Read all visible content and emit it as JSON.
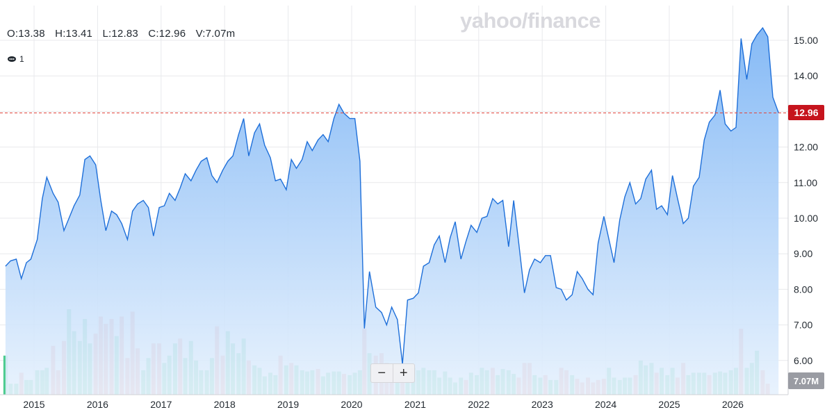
{
  "brand": "yahoo/finance",
  "ohlc": {
    "open": "O:13.38",
    "high": "H:13.41",
    "low": "L:12.83",
    "close": "C:12.96",
    "volume": "V:7.07m"
  },
  "events": {
    "count": "1"
  },
  "zoom": {
    "minus": "−",
    "plus": "+"
  },
  "colors": {
    "line": "#1e6fd9",
    "area": "#9cc7f7",
    "up": "#4ccb8f",
    "down": "#ef8a85",
    "ref": "#e0443a",
    "priceTag": "#c6141d",
    "volTag": "#9a9ca3"
  },
  "chart_data": {
    "type": "area",
    "x_axis": {
      "ticks": [
        "2015",
        "2016",
        "2017",
        "2018",
        "2019",
        "2020",
        "2021",
        "2022",
        "2023",
        "2024",
        "2025",
        "2026"
      ]
    },
    "y_axis": {
      "side": "right",
      "ticks": [
        "6.00",
        "7.00",
        "8.00",
        "9.00",
        "10.00",
        "11.00",
        "12.00",
        "13.00",
        "14.00",
        "15.00"
      ]
    },
    "reference_line": {
      "value": 12.96,
      "label": "12.96"
    },
    "volume_label": "7.07M",
    "x": [
      2014.55,
      2014.63,
      2014.72,
      2014.8,
      2014.88,
      2014.95,
      2015.05,
      2015.13,
      2015.2,
      2015.3,
      2015.38,
      2015.47,
      2015.55,
      2015.63,
      2015.72,
      2015.8,
      2015.88,
      2015.97,
      2016.05,
      2016.13,
      2016.22,
      2016.3,
      2016.38,
      2016.47,
      2016.55,
      2016.63,
      2016.72,
      2016.8,
      2016.88,
      2016.97,
      2017.05,
      2017.13,
      2017.22,
      2017.3,
      2017.38,
      2017.47,
      2017.55,
      2017.63,
      2017.72,
      2017.8,
      2017.88,
      2017.97,
      2018.05,
      2018.13,
      2018.22,
      2018.3,
      2018.38,
      2018.47,
      2018.55,
      2018.63,
      2018.72,
      2018.8,
      2018.88,
      2018.97,
      2019.05,
      2019.13,
      2019.22,
      2019.3,
      2019.38,
      2019.47,
      2019.55,
      2019.63,
      2019.72,
      2019.8,
      2019.88,
      2019.97,
      2020.05,
      2020.13,
      2020.2,
      2020.28,
      2020.38,
      2020.47,
      2020.55,
      2020.63,
      2020.72,
      2020.8,
      2020.88,
      2020.97,
      2021.05,
      2021.13,
      2021.22,
      2021.3,
      2021.38,
      2021.47,
      2021.55,
      2021.63,
      2021.72,
      2021.8,
      2021.88,
      2021.97,
      2022.05,
      2022.13,
      2022.22,
      2022.3,
      2022.38,
      2022.47,
      2022.55,
      2022.63,
      2022.72,
      2022.8,
      2022.88,
      2022.97,
      2023.05,
      2023.13,
      2023.22,
      2023.3,
      2023.38,
      2023.47,
      2023.55,
      2023.63,
      2023.72,
      2023.8,
      2023.88,
      2023.97,
      2024.05,
      2024.13,
      2024.22,
      2024.3,
      2024.38,
      2024.47,
      2024.55,
      2024.63,
      2024.72,
      2024.8,
      2024.88,
      2024.97,
      2025.05,
      2025.13,
      2025.22,
      2025.3,
      2025.38,
      2025.47,
      2025.55,
      2025.63,
      2025.72,
      2025.8,
      2025.88,
      2025.97,
      2026.05,
      2026.13,
      2026.22,
      2026.3,
      2026.38,
      2026.47,
      2026.55,
      2026.63,
      2026.72
    ],
    "price": [
      8.65,
      8.8,
      8.85,
      8.3,
      8.75,
      8.85,
      9.4,
      10.55,
      11.15,
      10.7,
      10.45,
      9.65,
      10.0,
      10.35,
      10.65,
      11.65,
      11.75,
      11.5,
      10.5,
      9.65,
      10.2,
      10.1,
      9.85,
      9.4,
      10.2,
      10.4,
      10.5,
      10.3,
      9.5,
      10.3,
      10.35,
      10.7,
      10.5,
      10.85,
      11.25,
      11.05,
      11.35,
      11.6,
      11.7,
      11.2,
      11.0,
      11.35,
      11.6,
      11.75,
      12.35,
      12.8,
      11.75,
      12.4,
      12.65,
      12.05,
      11.7,
      11.05,
      11.1,
      10.8,
      11.65,
      11.4,
      11.65,
      12.15,
      11.9,
      12.2,
      12.35,
      12.15,
      12.8,
      13.2,
      12.95,
      12.8,
      12.8,
      11.6,
      6.9,
      8.5,
      7.5,
      7.35,
      7.0,
      7.5,
      7.15,
      5.9,
      7.7,
      7.75,
      7.9,
      8.65,
      8.75,
      9.25,
      9.5,
      8.75,
      9.45,
      9.9,
      8.85,
      9.35,
      9.8,
      9.6,
      10.0,
      10.05,
      10.55,
      10.4,
      10.5,
      9.2,
      10.5,
      9.3,
      7.9,
      8.55,
      8.85,
      8.75,
      8.95,
      8.95,
      8.05,
      8.0,
      7.7,
      7.85,
      8.5,
      8.3,
      8.0,
      7.85,
      9.3,
      10.05,
      9.4,
      8.75,
      9.95,
      10.6,
      11.0,
      10.4,
      10.55,
      11.1,
      11.35,
      10.25,
      10.35,
      10.1,
      11.2,
      10.55,
      9.85,
      10.0,
      10.9,
      11.15,
      12.2,
      12.7,
      12.9,
      13.6,
      12.65,
      12.45,
      12.55,
      15.05,
      13.9,
      14.9,
      15.15,
      15.35,
      15.1,
      13.4,
      12.96
    ],
    "volume": [
      {
        "v": 16,
        "up": true
      },
      {
        "v": 4.5,
        "up": true
      },
      {
        "v": 4.5,
        "up": true
      },
      {
        "v": 9,
        "up": false
      },
      {
        "v": 6,
        "up": true
      },
      {
        "v": 6,
        "up": true
      },
      {
        "v": 10,
        "up": true
      },
      {
        "v": 10,
        "up": true
      },
      {
        "v": 11,
        "up": true
      },
      {
        "v": 20,
        "up": false
      },
      {
        "v": 10,
        "up": false
      },
      {
        "v": 22,
        "up": false
      },
      {
        "v": 35,
        "up": true
      },
      {
        "v": 26,
        "up": true
      },
      {
        "v": 22,
        "up": true
      },
      {
        "v": 31,
        "up": true
      },
      {
        "v": 21,
        "up": true
      },
      {
        "v": 25,
        "up": false
      },
      {
        "v": 32,
        "up": false
      },
      {
        "v": 29,
        "up": false
      },
      {
        "v": 31,
        "up": false
      },
      {
        "v": 24,
        "up": true
      },
      {
        "v": 32,
        "up": false
      },
      {
        "v": 15,
        "up": false
      },
      {
        "v": 34,
        "up": false
      },
      {
        "v": 19,
        "up": false
      },
      {
        "v": 10,
        "up": true
      },
      {
        "v": 15,
        "up": true
      },
      {
        "v": 21,
        "up": false
      },
      {
        "v": 21,
        "up": false
      },
      {
        "v": 13,
        "up": true
      },
      {
        "v": 16,
        "up": true
      },
      {
        "v": 21,
        "up": true
      },
      {
        "v": 23,
        "up": false
      },
      {
        "v": 15,
        "up": true
      },
      {
        "v": 22,
        "up": true
      },
      {
        "v": 14,
        "up": true
      },
      {
        "v": 10,
        "up": true
      },
      {
        "v": 10,
        "up": true
      },
      {
        "v": 15,
        "up": true
      },
      {
        "v": 28,
        "up": false
      },
      {
        "v": 16,
        "up": false
      },
      {
        "v": 26,
        "up": true
      },
      {
        "v": 21,
        "up": true
      },
      {
        "v": 17,
        "up": true
      },
      {
        "v": 23,
        "up": true
      },
      {
        "v": 14,
        "up": false
      },
      {
        "v": 12,
        "up": true
      },
      {
        "v": 11,
        "up": true
      },
      {
        "v": 7.5,
        "up": true
      },
      {
        "v": 9,
        "up": true
      },
      {
        "v": 8,
        "up": true
      },
      {
        "v": 16,
        "up": false
      },
      {
        "v": 12,
        "up": true
      },
      {
        "v": 13,
        "up": false
      },
      {
        "v": 12,
        "up": true
      },
      {
        "v": 10,
        "up": true
      },
      {
        "v": 9.5,
        "up": true
      },
      {
        "v": 10,
        "up": true
      },
      {
        "v": 10.5,
        "up": false
      },
      {
        "v": 7.5,
        "up": true
      },
      {
        "v": 9,
        "up": true
      },
      {
        "v": 9.5,
        "up": true
      },
      {
        "v": 9.5,
        "up": true
      },
      {
        "v": 8.5,
        "up": false
      },
      {
        "v": 8,
        "up": true
      },
      {
        "v": 9,
        "up": true
      },
      {
        "v": 10,
        "up": true
      },
      {
        "v": 27,
        "up": false
      },
      {
        "v": 17,
        "up": true
      },
      {
        "v": 16,
        "up": false
      },
      {
        "v": 17,
        "up": false
      },
      {
        "v": 13,
        "up": false
      },
      {
        "v": 11,
        "up": false
      },
      {
        "v": 9,
        "up": true
      },
      {
        "v": 6,
        "up": false
      },
      {
        "v": 5.5,
        "up": true
      },
      {
        "v": 11,
        "up": true
      },
      {
        "v": 10,
        "up": true
      },
      {
        "v": 11,
        "up": true
      },
      {
        "v": 10,
        "up": true
      },
      {
        "v": 10,
        "up": true
      },
      {
        "v": 7,
        "up": true
      },
      {
        "v": 9.5,
        "up": true
      },
      {
        "v": 7,
        "up": true
      },
      {
        "v": 5,
        "up": true
      },
      {
        "v": 7,
        "up": true
      },
      {
        "v": 6,
        "up": false
      },
      {
        "v": 9,
        "up": true
      },
      {
        "v": 8,
        "up": true
      },
      {
        "v": 11,
        "up": true
      },
      {
        "v": 10,
        "up": true
      },
      {
        "v": 11,
        "up": false
      },
      {
        "v": 8,
        "up": true
      },
      {
        "v": 10.5,
        "up": true
      },
      {
        "v": 10,
        "up": true
      },
      {
        "v": 8.5,
        "up": true
      },
      {
        "v": 7,
        "up": false
      },
      {
        "v": 13,
        "up": false
      },
      {
        "v": 13,
        "up": false
      },
      {
        "v": 8,
        "up": true
      },
      {
        "v": 7,
        "up": true
      },
      {
        "v": 8,
        "up": false
      },
      {
        "v": 6,
        "up": true
      },
      {
        "v": 6,
        "up": true
      },
      {
        "v": 11,
        "up": false
      },
      {
        "v": 10,
        "up": false
      },
      {
        "v": 8,
        "up": true
      },
      {
        "v": 6.5,
        "up": false
      },
      {
        "v": 5,
        "up": false
      },
      {
        "v": 7,
        "up": false
      },
      {
        "v": 5,
        "up": false
      },
      {
        "v": 6,
        "up": false
      },
      {
        "v": 6.5,
        "up": false
      },
      {
        "v": 11,
        "up": true
      },
      {
        "v": 7,
        "up": true
      },
      {
        "v": 6,
        "up": true
      },
      {
        "v": 7,
        "up": true
      },
      {
        "v": 7,
        "up": true
      },
      {
        "v": 8,
        "up": false
      },
      {
        "v": 14,
        "up": true
      },
      {
        "v": 12,
        "up": true
      },
      {
        "v": 13,
        "up": true
      },
      {
        "v": 9,
        "up": false
      },
      {
        "v": 11,
        "up": true
      },
      {
        "v": 8,
        "up": true
      },
      {
        "v": 11,
        "up": true
      },
      {
        "v": 7,
        "up": false
      },
      {
        "v": 13,
        "up": false
      },
      {
        "v": 8,
        "up": true
      },
      {
        "v": 9,
        "up": true
      },
      {
        "v": 9,
        "up": true
      },
      {
        "v": 9,
        "up": true
      },
      {
        "v": 8,
        "up": false
      },
      {
        "v": 9,
        "up": true
      },
      {
        "v": 9.5,
        "up": true
      },
      {
        "v": 9,
        "up": true
      },
      {
        "v": 10,
        "up": true
      },
      {
        "v": 11,
        "up": true
      },
      {
        "v": 27,
        "up": false
      },
      {
        "v": 11,
        "up": true
      },
      {
        "v": 13,
        "up": true
      },
      {
        "v": 18,
        "up": true
      },
      {
        "v": 10,
        "up": false
      },
      {
        "v": 4.5,
        "up": false
      }
    ]
  }
}
